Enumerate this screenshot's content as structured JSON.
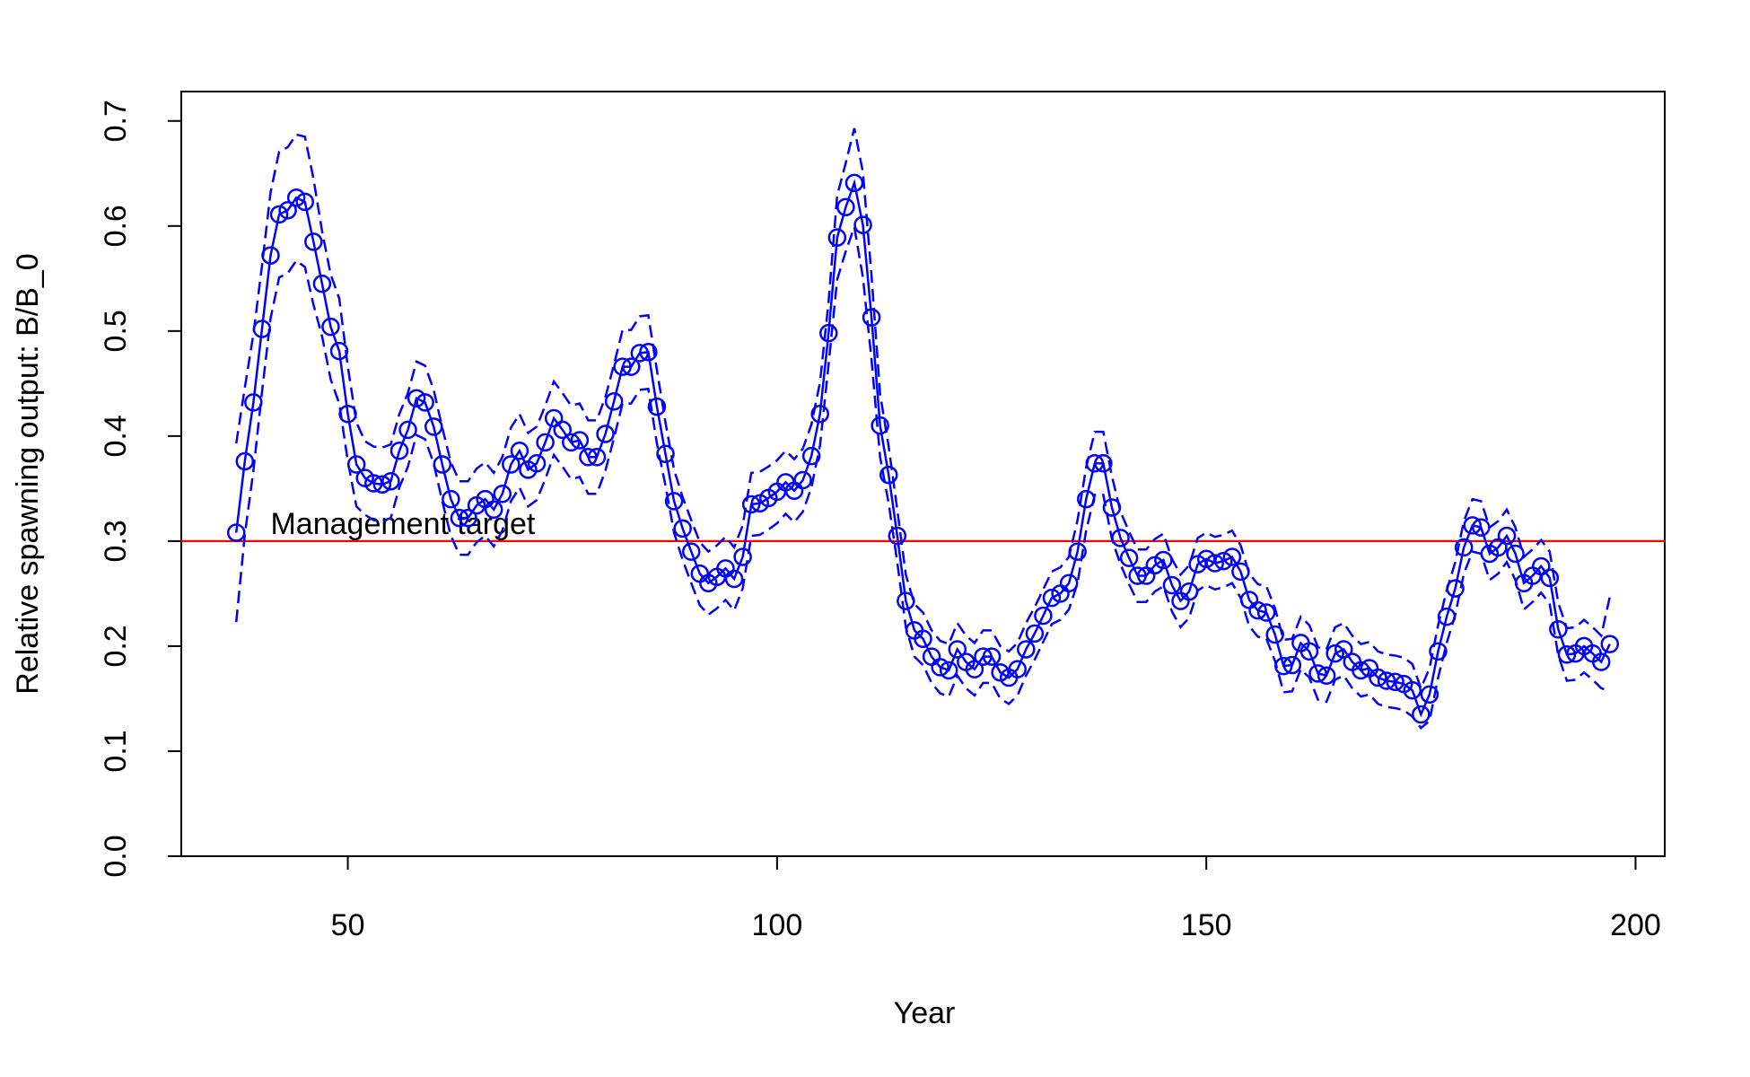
{
  "chart_data": {
    "type": "line",
    "xlabel": "Year",
    "ylabel": "Relative spawning output: B/B_0",
    "x": [
      37,
      38,
      39,
      40,
      41,
      42,
      43,
      44,
      45,
      46,
      47,
      48,
      49,
      50,
      51,
      52,
      53,
      54,
      55,
      56,
      57,
      58,
      59,
      60,
      61,
      62,
      63,
      64,
      65,
      66,
      67,
      68,
      69,
      70,
      71,
      72,
      73,
      74,
      75,
      76,
      77,
      78,
      79,
      80,
      81,
      82,
      83,
      84,
      85,
      86,
      87,
      88,
      89,
      90,
      91,
      92,
      93,
      94,
      95,
      96,
      97,
      98,
      99,
      100,
      101,
      102,
      103,
      104,
      105,
      106,
      107,
      108,
      109,
      110,
      111,
      112,
      113,
      114,
      115,
      116,
      117,
      118,
      119,
      120,
      121,
      122,
      123,
      124,
      125,
      126,
      127,
      128,
      129,
      130,
      131,
      132,
      133,
      134,
      135,
      136,
      137,
      138,
      139,
      140,
      141,
      142,
      143,
      144,
      145,
      146,
      147,
      148,
      149,
      150,
      151,
      152,
      153,
      154,
      155,
      156,
      157,
      158,
      159,
      160,
      161,
      162,
      163,
      164,
      165,
      166,
      167,
      168,
      169,
      170,
      171,
      172,
      173,
      174,
      175,
      176,
      177,
      178,
      179,
      180,
      181,
      182,
      183,
      184,
      185,
      186,
      187,
      188,
      189,
      190,
      191,
      192,
      193,
      194,
      195,
      196,
      197
    ],
    "series": [
      {
        "color": "#0000ff",
        "linestyle": "solid",
        "markers": true,
        "values": [
          0.308,
          0.376,
          0.432,
          0.502,
          0.572,
          0.611,
          0.615,
          0.627,
          0.623,
          0.585,
          0.545,
          0.504,
          0.481,
          0.421,
          0.373,
          0.36,
          0.355,
          0.354,
          0.357,
          0.386,
          0.406,
          0.436,
          0.432,
          0.409,
          0.373,
          0.34,
          0.322,
          0.322,
          0.334,
          0.34,
          0.33,
          0.345,
          0.373,
          0.386,
          0.368,
          0.374,
          0.394,
          0.417,
          0.406,
          0.394,
          0.396,
          0.38,
          0.38,
          0.402,
          0.433,
          0.466,
          0.466,
          0.479,
          0.48,
          0.428,
          0.383,
          0.338,
          0.312,
          0.29,
          0.269,
          0.26,
          0.266,
          0.274,
          0.264,
          0.285,
          0.335,
          0.336,
          0.341,
          0.347,
          0.356,
          0.348,
          0.358,
          0.381,
          0.421,
          0.498,
          0.589,
          0.618,
          0.641,
          0.601,
          0.513,
          0.41,
          0.363,
          0.305,
          0.243,
          0.215,
          0.207,
          0.19,
          0.18,
          0.177,
          0.197,
          0.185,
          0.178,
          0.19,
          0.19,
          0.175,
          0.17,
          0.178,
          0.197,
          0.212,
          0.229,
          0.246,
          0.25,
          0.26,
          0.29,
          0.34,
          0.374,
          0.374,
          0.332,
          0.303,
          0.284,
          0.267,
          0.267,
          0.277,
          0.282,
          0.258,
          0.243,
          0.252,
          0.278,
          0.283,
          0.279,
          0.281,
          0.285,
          0.271,
          0.244,
          0.234,
          0.232,
          0.211,
          0.181,
          0.182,
          0.203,
          0.195,
          0.174,
          0.172,
          0.193,
          0.197,
          0.185,
          0.177,
          0.179,
          0.17,
          0.167,
          0.166,
          0.164,
          0.158,
          0.135,
          0.154,
          0.195,
          0.228,
          0.255,
          0.294,
          0.315,
          0.313,
          0.288,
          0.294,
          0.305,
          0.288,
          0.26,
          0.267,
          0.276,
          0.265,
          0.216,
          0.192,
          0.193,
          0.2,
          0.193,
          0.185,
          0.202
        ]
      },
      {
        "color": "#0000ff",
        "linestyle": "dashed",
        "markers": false,
        "values": [
          0.393,
          0.446,
          0.497,
          0.562,
          0.632,
          0.671,
          0.675,
          0.687,
          0.685,
          0.645,
          0.595,
          0.554,
          0.531,
          0.466,
          0.413,
          0.395,
          0.39,
          0.389,
          0.392,
          0.421,
          0.441,
          0.471,
          0.467,
          0.444,
          0.408,
          0.375,
          0.357,
          0.357,
          0.369,
          0.375,
          0.365,
          0.38,
          0.408,
          0.421,
          0.403,
          0.409,
          0.429,
          0.452,
          0.441,
          0.429,
          0.431,
          0.415,
          0.415,
          0.437,
          0.468,
          0.501,
          0.501,
          0.514,
          0.515,
          0.463,
          0.413,
          0.368,
          0.342,
          0.32,
          0.299,
          0.29,
          0.296,
          0.304,
          0.294,
          0.315,
          0.365,
          0.366,
          0.371,
          0.377,
          0.386,
          0.378,
          0.388,
          0.411,
          0.451,
          0.528,
          0.629,
          0.66,
          0.693,
          0.651,
          0.553,
          0.44,
          0.39,
          0.33,
          0.268,
          0.24,
          0.232,
          0.215,
          0.205,
          0.202,
          0.222,
          0.21,
          0.203,
          0.215,
          0.215,
          0.2,
          0.195,
          0.203,
          0.222,
          0.237,
          0.254,
          0.271,
          0.275,
          0.285,
          0.32,
          0.37,
          0.404,
          0.404,
          0.362,
          0.328,
          0.309,
          0.292,
          0.292,
          0.302,
          0.307,
          0.283,
          0.268,
          0.277,
          0.303,
          0.308,
          0.304,
          0.306,
          0.31,
          0.296,
          0.269,
          0.259,
          0.257,
          0.236,
          0.206,
          0.207,
          0.228,
          0.22,
          0.199,
          0.197,
          0.218,
          0.222,
          0.21,
          0.202,
          0.204,
          0.195,
          0.192,
          0.191,
          0.189,
          0.183,
          0.16,
          0.179,
          0.22,
          0.253,
          0.28,
          0.319,
          0.34,
          0.338,
          0.313,
          0.319,
          0.33,
          0.313,
          0.285,
          0.292,
          0.301,
          0.29,
          0.241,
          0.217,
          0.218,
          0.225,
          0.218,
          0.21,
          0.247
        ]
      },
      {
        "color": "#0000ff",
        "linestyle": "dashed",
        "markers": false,
        "values": [
          0.223,
          0.306,
          0.367,
          0.442,
          0.512,
          0.551,
          0.555,
          0.567,
          0.561,
          0.525,
          0.495,
          0.454,
          0.431,
          0.376,
          0.333,
          0.325,
          0.32,
          0.319,
          0.322,
          0.351,
          0.371,
          0.401,
          0.397,
          0.374,
          0.338,
          0.305,
          0.287,
          0.287,
          0.299,
          0.305,
          0.295,
          0.31,
          0.338,
          0.351,
          0.333,
          0.339,
          0.359,
          0.382,
          0.371,
          0.359,
          0.361,
          0.345,
          0.345,
          0.367,
          0.398,
          0.431,
          0.431,
          0.444,
          0.445,
          0.393,
          0.353,
          0.308,
          0.282,
          0.26,
          0.239,
          0.23,
          0.236,
          0.244,
          0.234,
          0.255,
          0.305,
          0.306,
          0.311,
          0.317,
          0.326,
          0.318,
          0.328,
          0.351,
          0.391,
          0.468,
          0.549,
          0.576,
          0.599,
          0.551,
          0.473,
          0.38,
          0.336,
          0.28,
          0.218,
          0.19,
          0.182,
          0.165,
          0.155,
          0.152,
          0.172,
          0.16,
          0.153,
          0.165,
          0.165,
          0.15,
          0.145,
          0.153,
          0.172,
          0.187,
          0.204,
          0.221,
          0.225,
          0.235,
          0.26,
          0.31,
          0.344,
          0.344,
          0.302,
          0.278,
          0.259,
          0.242,
          0.242,
          0.252,
          0.257,
          0.233,
          0.218,
          0.227,
          0.253,
          0.258,
          0.254,
          0.256,
          0.26,
          0.246,
          0.219,
          0.209,
          0.207,
          0.186,
          0.156,
          0.157,
          0.178,
          0.17,
          0.149,
          0.147,
          0.168,
          0.172,
          0.16,
          0.152,
          0.154,
          0.145,
          0.142,
          0.141,
          0.139,
          0.133,
          0.122,
          0.129,
          0.17,
          0.203,
          0.23,
          0.269,
          0.29,
          0.288,
          0.263,
          0.269,
          0.28,
          0.263,
          0.235,
          0.242,
          0.251,
          0.24,
          0.191,
          0.167,
          0.168,
          0.175,
          0.168,
          0.16,
          0.157
        ]
      }
    ],
    "hline": {
      "value": 0.3,
      "color": "#ff0000",
      "label": "Management target",
      "label_x": 41
    },
    "xlim": [
      30.6,
      203.4
    ],
    "xticks": [
      50,
      100,
      150,
      200
    ],
    "ylim": [
      0,
      0.728
    ],
    "yticks": [
      {
        "value": 0,
        "label": "0.0"
      },
      0.1,
      0.2,
      0.3,
      0.4,
      0.5,
      0.6,
      0.7
    ]
  }
}
